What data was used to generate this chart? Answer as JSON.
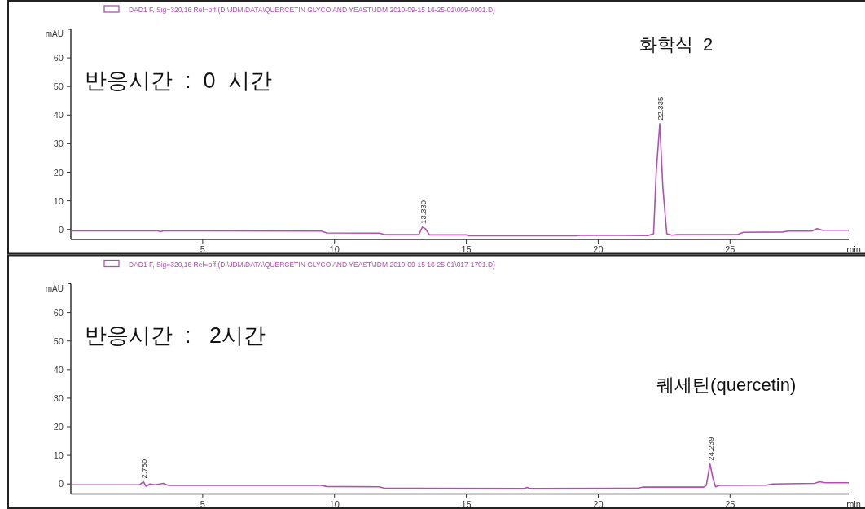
{
  "chart_data": [
    {
      "type": "line",
      "xlabel": "min",
      "ylabel": "mAU",
      "xlim": [
        0,
        29.5
      ],
      "ylim": [
        -3.5,
        70
      ],
      "xticks": [
        5,
        10,
        15,
        20,
        25
      ],
      "yticks": [
        0,
        10,
        20,
        30,
        40,
        50,
        60
      ],
      "legend": "top left",
      "grid": false,
      "series": [
        {
          "name": "DAD1 F, Sig=320,16 Ref=off (D:\\JDM\\DATA\\QUERCETIN GLYCO AND YEAST\\JDM 2010-09-15 16-25-01\\009-0901.D)",
          "color": "#b050b0",
          "x": [
            0,
            3.3,
            3.4,
            3.5,
            9.5,
            9.7,
            11.7,
            11.9,
            13.2,
            13.33,
            13.45,
            13.6,
            15,
            15.1,
            19.2,
            19.3,
            21.9,
            22.1,
            22.2,
            22.335,
            22.45,
            22.6,
            22.8,
            23,
            25.3,
            25.5,
            27,
            27.2,
            28.1,
            28.3,
            28.5,
            29.5
          ],
          "values": [
            -0.5,
            -0.5,
            -0.8,
            -0.5,
            -0.6,
            -1.2,
            -1.3,
            -1.8,
            -1.8,
            0.8,
            0.2,
            -1.9,
            -1.9,
            -2.2,
            -2.2,
            -2,
            -2.1,
            -1.5,
            20,
            37,
            15,
            -1.5,
            -2,
            -1.8,
            -1.7,
            -1,
            -0.9,
            -0.6,
            -0.6,
            0.3,
            -0.3,
            -0.3
          ]
        }
      ],
      "annotations": [
        "반응시간  :  0  시간",
        {
          "text": "13.330",
          "x": 13.33,
          "y": 0.8
        },
        {
          "text": "22.335",
          "x": 22.335,
          "y": 37
        },
        "화학식  2"
      ]
    },
    {
      "type": "line",
      "xlabel": "min",
      "ylabel": "mAU",
      "xlim": [
        0,
        29.5
      ],
      "ylim": [
        -3.5,
        70
      ],
      "xticks": [
        5,
        10,
        15,
        20,
        25
      ],
      "yticks": [
        0,
        10,
        20,
        30,
        40,
        50,
        60
      ],
      "legend": "top left",
      "grid": false,
      "series": [
        {
          "name": "DAD1 F, Sig=320,16 Ref=off (D:\\JDM\\DATA\\QUERCETIN GLYCO AND YEAST\\JDM 2010-09-15 16-25-01\\017-1701.D)",
          "color": "#b050b0",
          "x": [
            0,
            2.6,
            2.75,
            2.85,
            3,
            3.2,
            3.5,
            3.7,
            9.5,
            9.7,
            11.7,
            11.9,
            17.2,
            17.3,
            17.4,
            21.5,
            21.7,
            24,
            24.1,
            24.239,
            24.35,
            24.45,
            24.6,
            26.4,
            26.6,
            28.2,
            28.4,
            28.6,
            29.5
          ],
          "values": [
            -0.3,
            -0.3,
            0.8,
            -0.8,
            0,
            -0.3,
            0.2,
            -0.5,
            -0.5,
            -0.9,
            -1,
            -1.5,
            -1.6,
            -1.2,
            -1.6,
            -1.5,
            -1.1,
            -1.1,
            -0.5,
            7,
            2,
            -1,
            -0.5,
            -0.4,
            0,
            0.2,
            0.8,
            0.4,
            0.4
          ]
        }
      ],
      "annotations": [
        "반응시간  :   2시간",
        {
          "text": "2.750",
          "x": 2.75,
          "y": 0.8
        },
        {
          "text": "24.239",
          "x": 24.239,
          "y": 7
        },
        "퀘세틴(quercetin)"
      ]
    }
  ]
}
